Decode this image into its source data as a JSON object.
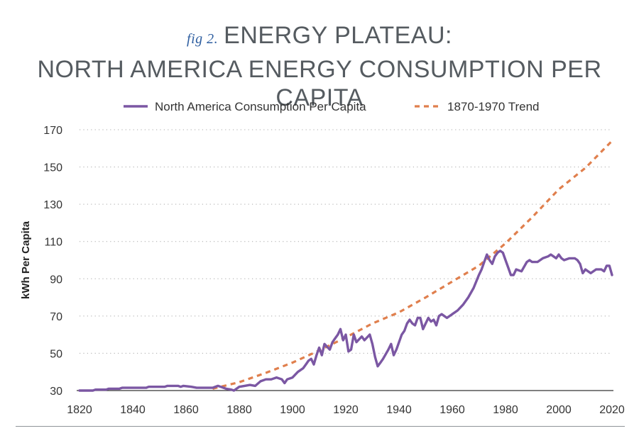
{
  "header": {
    "fig_label": "fig 2.",
    "title_line1": "ENERGY PLATEAU:",
    "title_line2": "NORTH AMERICA ENERGY CONSUMPTION PER CAPITA"
  },
  "colors": {
    "consumption": "#7b57a3",
    "trend": "#e07f4d",
    "text": "#555b60",
    "axis": "#333333",
    "grid": "#a9a9a9"
  },
  "chart_data": {
    "type": "line",
    "title": "NORTH AMERICA ENERGY CONSUMPTION PER CAPITA",
    "xlabel": "",
    "ylabel": "kWh Per Capita",
    "xlim": [
      1820,
      2020
    ],
    "ylim": [
      30,
      170
    ],
    "x_ticks": [
      "1820",
      "1840",
      "1860",
      "1880",
      "1900",
      "1920",
      "1940",
      "1960",
      "1980",
      "2000",
      "2020"
    ],
    "y_ticks": [
      "30",
      "50",
      "70",
      "90",
      "110",
      "130",
      "150",
      "170"
    ],
    "grid": "horizontal dotted",
    "legend_position": "top-center",
    "series": [
      {
        "name": "North America Consumption Per Capita",
        "style": "solid",
        "points": [
          [
            1820,
            30
          ],
          [
            1825,
            30
          ],
          [
            1826,
            30.5
          ],
          [
            1830,
            30.5
          ],
          [
            1831,
            31
          ],
          [
            1835,
            31
          ],
          [
            1836,
            31.5
          ],
          [
            1845,
            31.5
          ],
          [
            1846,
            32
          ],
          [
            1852,
            32
          ],
          [
            1853,
            32.5
          ],
          [
            1857,
            32.5
          ],
          [
            1858,
            32
          ],
          [
            1859,
            32.5
          ],
          [
            1862,
            32
          ],
          [
            1864,
            31.5
          ],
          [
            1868,
            31.5
          ],
          [
            1870,
            31.5
          ],
          [
            1872,
            32.5
          ],
          [
            1873,
            32
          ],
          [
            1875,
            31
          ],
          [
            1877,
            30.5
          ],
          [
            1878,
            30
          ],
          [
            1880,
            32
          ],
          [
            1882,
            32.5
          ],
          [
            1884,
            33
          ],
          [
            1886,
            32.5
          ],
          [
            1888,
            35
          ],
          [
            1890,
            36
          ],
          [
            1892,
            36
          ],
          [
            1894,
            37
          ],
          [
            1896,
            36
          ],
          [
            1897,
            34
          ],
          [
            1898,
            36
          ],
          [
            1900,
            37
          ],
          [
            1902,
            40
          ],
          [
            1904,
            42
          ],
          [
            1905,
            44
          ],
          [
            1906,
            46
          ],
          [
            1907,
            47
          ],
          [
            1908,
            44
          ],
          [
            1909,
            49
          ],
          [
            1910,
            53
          ],
          [
            1911,
            49
          ],
          [
            1912,
            55
          ],
          [
            1914,
            52
          ],
          [
            1915,
            56
          ],
          [
            1916,
            58
          ],
          [
            1917,
            60
          ],
          [
            1918,
            63
          ],
          [
            1919,
            57
          ],
          [
            1920,
            60
          ],
          [
            1921,
            51
          ],
          [
            1922,
            52
          ],
          [
            1923,
            60
          ],
          [
            1924,
            56
          ],
          [
            1926,
            59
          ],
          [
            1927,
            57
          ],
          [
            1929,
            60
          ],
          [
            1930,
            55
          ],
          [
            1931,
            48
          ],
          [
            1932,
            43
          ],
          [
            1933,
            45
          ],
          [
            1934,
            47
          ],
          [
            1936,
            52
          ],
          [
            1937,
            55
          ],
          [
            1938,
            49
          ],
          [
            1939,
            52
          ],
          [
            1941,
            60
          ],
          [
            1942,
            62
          ],
          [
            1943,
            66
          ],
          [
            1944,
            68
          ],
          [
            1945,
            66
          ],
          [
            1946,
            65
          ],
          [
            1947,
            69
          ],
          [
            1948,
            69
          ],
          [
            1949,
            63
          ],
          [
            1950,
            66
          ],
          [
            1951,
            69
          ],
          [
            1952,
            67
          ],
          [
            1953,
            68
          ],
          [
            1954,
            65
          ],
          [
            1955,
            70
          ],
          [
            1956,
            71
          ],
          [
            1958,
            69
          ],
          [
            1960,
            71
          ],
          [
            1962,
            73
          ],
          [
            1964,
            76
          ],
          [
            1966,
            80
          ],
          [
            1968,
            85
          ],
          [
            1970,
            92
          ],
          [
            1971,
            95
          ],
          [
            1972,
            99
          ],
          [
            1973,
            103
          ],
          [
            1974,
            100
          ],
          [
            1975,
            98
          ],
          [
            1976,
            102
          ],
          [
            1977,
            104
          ],
          [
            1978,
            105
          ],
          [
            1979,
            104
          ],
          [
            1980,
            100
          ],
          [
            1981,
            96
          ],
          [
            1982,
            92
          ],
          [
            1983,
            92
          ],
          [
            1984,
            95
          ],
          [
            1986,
            94
          ],
          [
            1988,
            99
          ],
          [
            1989,
            100
          ],
          [
            1990,
            99
          ],
          [
            1992,
            99
          ],
          [
            1994,
            101
          ],
          [
            1996,
            102
          ],
          [
            1997,
            103
          ],
          [
            1998,
            102
          ],
          [
            1999,
            101
          ],
          [
            2000,
            103
          ],
          [
            2001,
            101
          ],
          [
            2002,
            100
          ],
          [
            2004,
            101
          ],
          [
            2006,
            101
          ],
          [
            2007,
            100
          ],
          [
            2008,
            98
          ],
          [
            2009,
            93
          ],
          [
            2010,
            95
          ],
          [
            2012,
            93
          ],
          [
            2014,
            95
          ],
          [
            2016,
            95
          ],
          [
            2017,
            94
          ],
          [
            2018,
            97
          ],
          [
            2019,
            97
          ],
          [
            2020,
            92
          ]
        ]
      },
      {
        "name": "1870-1970 Trend",
        "style": "dashed",
        "points": [
          [
            1870,
            31
          ],
          [
            1880,
            34.5
          ],
          [
            1890,
            39.5
          ],
          [
            1900,
            45
          ],
          [
            1910,
            51.5
          ],
          [
            1920,
            58.5
          ],
          [
            1930,
            66
          ],
          [
            1940,
            72
          ],
          [
            1950,
            80
          ],
          [
            1960,
            88.5
          ],
          [
            1970,
            97
          ],
          [
            1980,
            109
          ],
          [
            1990,
            123
          ],
          [
            2000,
            138
          ],
          [
            2010,
            149.5
          ],
          [
            2020,
            164
          ]
        ]
      }
    ]
  }
}
